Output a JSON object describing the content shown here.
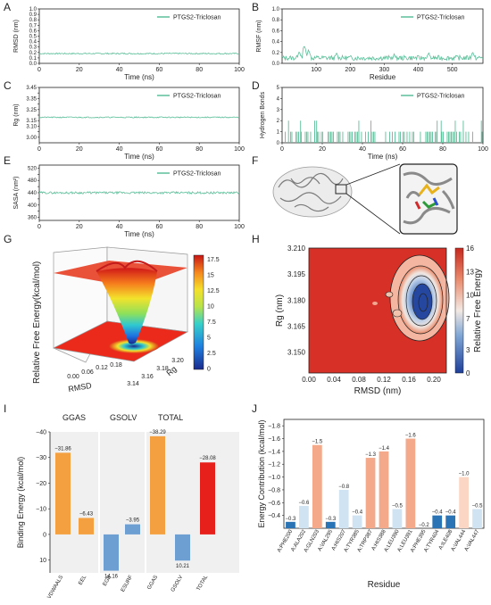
{
  "panels": {
    "A": "A",
    "B": "B",
    "C": "C",
    "D": "D",
    "E": "E",
    "F": "F",
    "G": "G",
    "H": "H",
    "I": "I",
    "J": "J"
  },
  "legend_label": "PTGS2-Triclosan",
  "colors": {
    "trace": "#5cbf9a",
    "orange": "#f4a040",
    "blue": "#6e9fd3",
    "red": "#e8201c",
    "panel_bg": "#f0f0f0",
    "j_deep": "#2a74b6",
    "j_light": "#cfe3f3",
    "j_salmon": "#f4a98a",
    "j_pale": "#fbd6c4"
  },
  "chart_data": [
    {
      "id": "A",
      "type": "line",
      "ylabel": "RMSD (nm)",
      "xlabel": "Time (ns)",
      "xlim": [
        0,
        100
      ],
      "ylim": [
        0,
        1.0
      ],
      "xticks": [
        0,
        20,
        40,
        60,
        80,
        100
      ],
      "yticks": [
        0.0,
        0.1,
        0.2,
        0.3,
        0.4,
        0.5,
        0.6,
        0.7,
        0.8,
        0.9,
        1.0
      ],
      "ytick_labels": [
        "0.0",
        "0.1",
        "0.2",
        "0.3",
        "0.4",
        "0.5",
        "0.6",
        "0.7",
        "0.8",
        "0.9",
        "1.0"
      ],
      "series": [
        {
          "name": "PTGS2-Triclosan",
          "x": [
            0,
            100
          ],
          "values": [
            0.18,
            0.19
          ],
          "mean": 0.18,
          "noise": 0.012
        }
      ]
    },
    {
      "id": "B",
      "type": "line",
      "ylabel": "RMSF (nm)",
      "xlabel": "Residue",
      "xlim": [
        0,
        590
      ],
      "ylim": [
        0,
        1.0
      ],
      "xticks": [
        100,
        200,
        300,
        400,
        500
      ],
      "yticks": [
        0.0,
        0.2,
        0.4,
        0.6,
        0.8,
        1.0
      ],
      "ytick_labels": [
        "0.0",
        "0.2",
        "0.4",
        "0.6",
        "0.8",
        "1.0"
      ],
      "series": [
        {
          "name": "PTGS2-Triclosan",
          "x": [
            0,
            590
          ],
          "values": [
            0.1,
            0.1
          ],
          "mean": 0.1,
          "noise": 0.045,
          "peaks": [
            [
              50,
              0.22
            ],
            [
              65,
              0.33
            ],
            [
              78,
              0.26
            ],
            [
              160,
              0.2
            ],
            [
              330,
              0.18
            ],
            [
              430,
              0.2
            ],
            [
              560,
              0.22
            ]
          ]
        }
      ]
    },
    {
      "id": "C",
      "type": "line",
      "ylabel": "Rg (nm)",
      "xlabel": "Time (ns)",
      "xlim": [
        0,
        100
      ],
      "ylim": [
        2.95,
        3.45
      ],
      "xticks": [
        0,
        20,
        40,
        60,
        80,
        100
      ],
      "yticks": [
        3.0,
        3.05,
        3.1,
        3.15,
        3.2,
        3.25,
        3.3,
        3.35,
        3.4,
        3.45
      ],
      "ytick_labels": [
        "3.00",
        "",
        "3.10",
        "3.15",
        "",
        "3.25",
        "",
        "3.35",
        "",
        "3.45"
      ],
      "series": [
        {
          "name": "PTGS2-Triclosan",
          "x": [
            0,
            100
          ],
          "values": [
            3.18,
            3.18
          ],
          "mean": 3.18,
          "noise": 0.005
        }
      ]
    },
    {
      "id": "D",
      "type": "bar",
      "ylabel": "Hydrogen Bonds",
      "xlabel": "Time (ns)",
      "xlim": [
        0,
        100
      ],
      "ylim": [
        0,
        5
      ],
      "xticks": [
        0,
        20,
        40,
        60,
        80,
        100
      ],
      "yticks": [
        0,
        1,
        2,
        3,
        4,
        5
      ],
      "ytick_labels": [
        "0",
        "1",
        "2",
        "3",
        "4",
        "5"
      ],
      "series": [
        {
          "name": "PTGS2-Triclosan",
          "base": 1,
          "spikes": [
            3,
            9,
            16,
            17,
            38,
            44,
            77,
            79,
            86,
            90,
            99
          ]
        }
      ]
    },
    {
      "id": "E",
      "type": "line",
      "ylabel": "SASA (nm²)",
      "xlabel": "Time (ns)",
      "xlim": [
        0,
        100
      ],
      "ylim": [
        350,
        530
      ],
      "xticks": [
        0,
        20,
        40,
        60,
        80,
        100
      ],
      "yticks": [
        360,
        380,
        400,
        420,
        440,
        460,
        480,
        500,
        520
      ],
      "ytick_labels": [
        "360",
        "",
        "400",
        "",
        "440",
        "",
        "480",
        "",
        "520"
      ],
      "series": [
        {
          "name": "PTGS2-Triclosan",
          "x": [
            0,
            100
          ],
          "values": [
            440,
            440
          ],
          "mean": 440,
          "noise": 3.5
        }
      ]
    },
    {
      "id": "G",
      "type": "heatmap",
      "zlabel": "Relative Free Energy(kcal/mol)",
      "xlabel": "RMSD",
      "ylabel": "Rg",
      "xticks": [
        "0.00",
        "0.06",
        "0.12",
        "0.18"
      ],
      "yticks": [
        "3.14",
        "3.16",
        "3.18",
        "3.20"
      ],
      "colorbar": [
        17.5,
        15.0,
        12.5,
        10.0,
        7.5,
        5.0,
        2.5,
        0.0
      ]
    },
    {
      "id": "H",
      "type": "heatmap",
      "xlabel": "RMSD (nm)",
      "ylabel": "Rg (nm)",
      "xlim": [
        0.0,
        0.22
      ],
      "ylim": [
        3.138,
        3.21
      ],
      "xticks": [
        "0.00",
        "0.04",
        "0.08",
        "0.12",
        "0.16",
        "0.20"
      ],
      "yticks": [
        "3.150",
        "3.165",
        "3.180",
        "3.195",
        "3.210"
      ],
      "colorbar_label": "Relative Free Energy",
      "colorbar": [
        16,
        13,
        10,
        7,
        3,
        0
      ],
      "minimum": {
        "rmsd": 0.18,
        "rg": 3.181
      }
    },
    {
      "id": "I",
      "type": "bar",
      "ylabel": "Binding Energy (kcal/mol)",
      "ylim": [
        -40,
        15
      ],
      "yticks": [
        -40,
        -30,
        -20,
        -10,
        0,
        10
      ],
      "ytick_labels": [
        "−40",
        "−30",
        "−20",
        "−10",
        "0",
        "10"
      ],
      "groups": [
        {
          "title": "GGAS",
          "categories": [
            "VDWAALS",
            "EEL"
          ],
          "values": [
            -31.86,
            -6.43
          ],
          "labels": [
            "−31.86",
            "−6.43"
          ],
          "colors": [
            "#f4a040",
            "#f4a040"
          ]
        },
        {
          "title": "GSOLV",
          "categories": [
            "EGB",
            "ESURF"
          ],
          "values": [
            14.16,
            -3.95
          ],
          "labels": [
            "14.16",
            "−3.95"
          ],
          "colors": [
            "#6e9fd3",
            "#6e9fd3"
          ]
        },
        {
          "title": "TOTAL",
          "categories": [
            "GGAS",
            "GSOLV",
            "TOTAL"
          ],
          "values": [
            -38.29,
            10.21,
            -28.08
          ],
          "labels": [
            "−38.29",
            "10.21",
            "−28.08"
          ],
          "colors": [
            "#f4a040",
            "#6e9fd3",
            "#e8201c"
          ]
        }
      ]
    },
    {
      "id": "J",
      "type": "bar",
      "ylabel": "Energy Contribution (kcal/mol)",
      "xlabel": "Residue",
      "ylim": [
        -0.2,
        -1.9
      ],
      "yticks": [
        -0.4,
        -0.6,
        -0.8,
        -1.0,
        -1.2,
        -1.4,
        -1.6,
        -1.8
      ],
      "ytick_labels": [
        "−0.4",
        "−0.6",
        "−0.8",
        "−1.0",
        "−1.2",
        "−1.4",
        "−1.6",
        "−1.8"
      ],
      "categories": [
        "A:PHE200",
        "A:ALA202",
        "A:GLN203",
        "A:VAL295",
        "A:HIS207",
        "A:TYR385",
        "A:TRP387",
        "A:HIS388",
        "A:LEU390",
        "A:LEU391",
        "A:PHE395",
        "A:TYR404",
        "A:ILE408",
        "A:VAL444",
        "A:VAL447"
      ],
      "values": [
        -0.3,
        -0.55,
        -1.5,
        -0.3,
        -0.8,
        -0.4,
        -1.3,
        -1.4,
        -0.5,
        -1.6,
        -0.2,
        -0.4,
        -0.4,
        -1.0,
        -0.5
      ],
      "labels": [
        "−0.3",
        "−0.6",
        "−1.5",
        "−0.3",
        "−0.8",
        "−0.4",
        "−1.3",
        "−1.4",
        "−0.5",
        "−1.6",
        "−0.2",
        "−0.4",
        "−0.4",
        "−1.0",
        "−0.5"
      ],
      "colors": [
        "#2a74b6",
        "#cfe3f3",
        "#f4a98a",
        "#2a74b6",
        "#cfe3f3",
        "#cfe3f3",
        "#f4a98a",
        "#f4a98a",
        "#cfe3f3",
        "#f4a98a",
        "#cfe3f3",
        "#2a74b6",
        "#2a74b6",
        "#fbd6c4",
        "#cfe3f3"
      ]
    }
  ]
}
